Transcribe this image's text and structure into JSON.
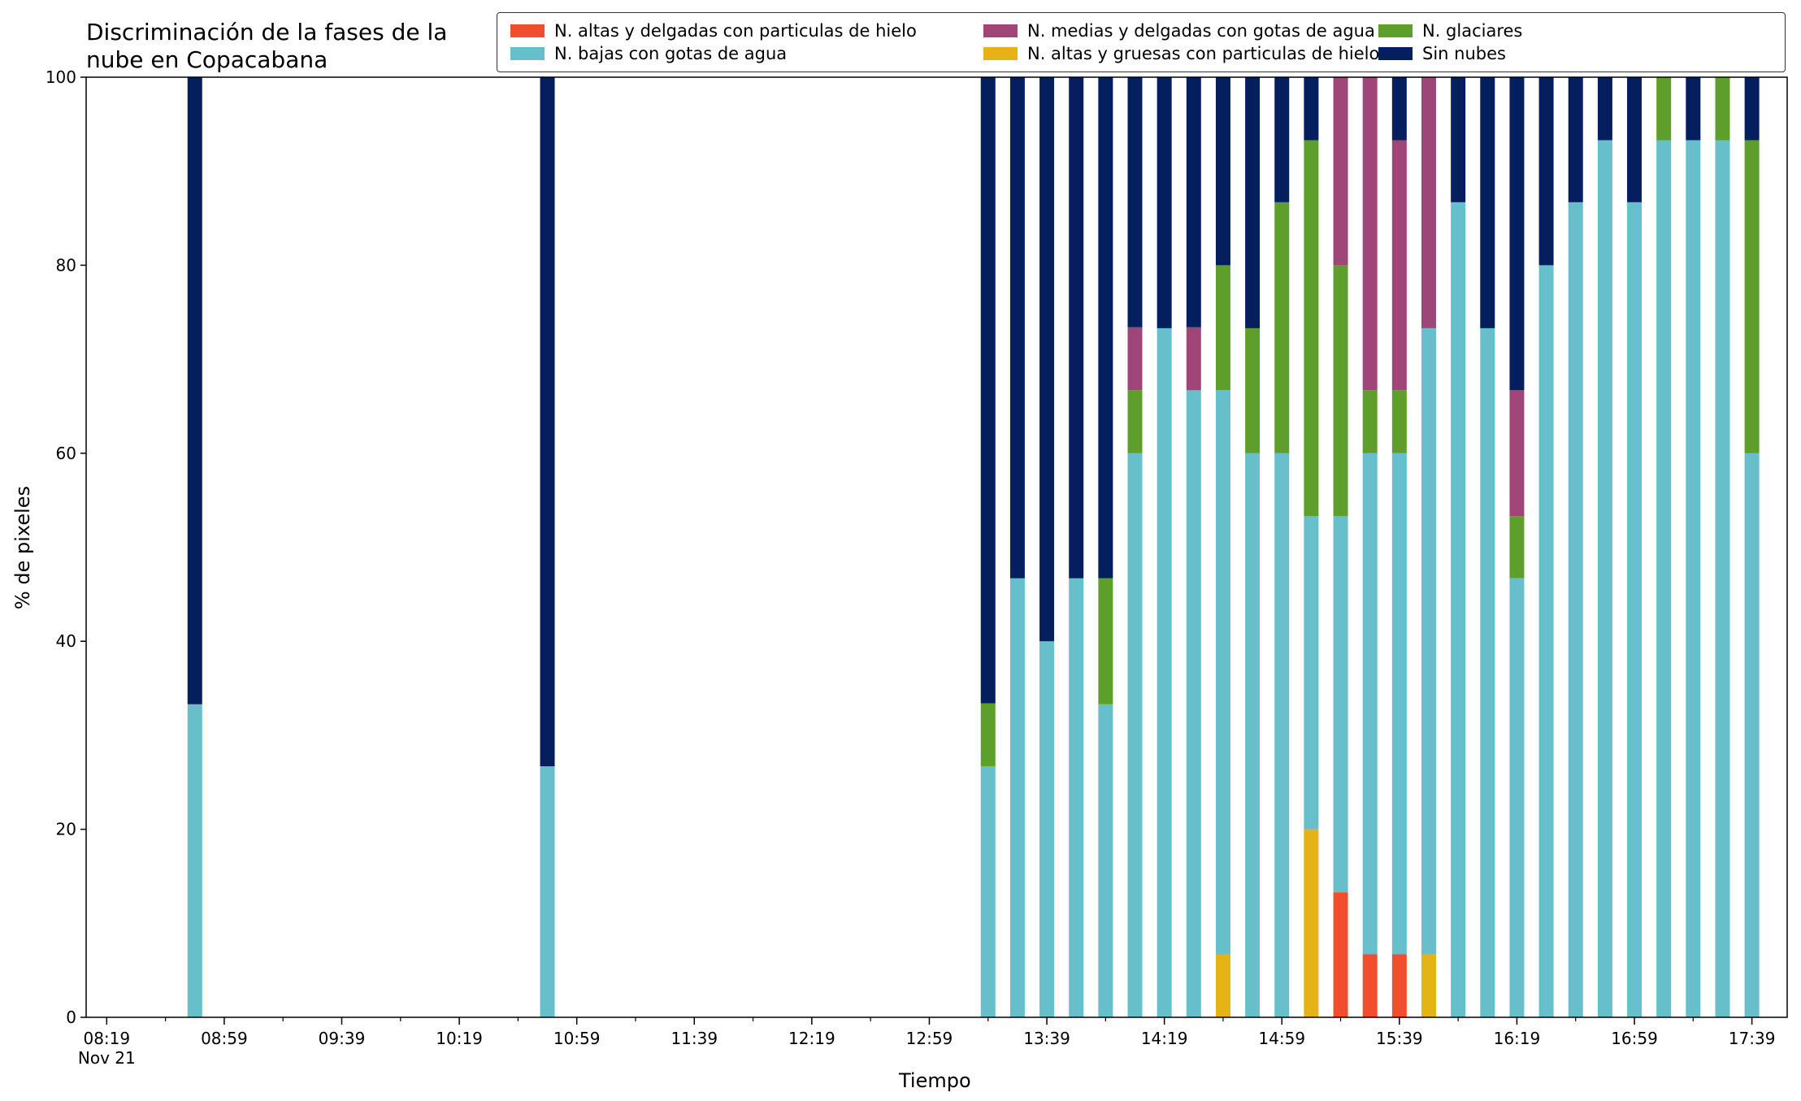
{
  "chart_data": {
    "type": "bar",
    "stacked": true,
    "title_lines": [
      "Discriminación de la fases de la",
      "nube en Copacabana"
    ],
    "xlabel": "Tiempo",
    "ylabel": "% de pixeles",
    "ylim": [
      0,
      100
    ],
    "yticks": [
      0,
      20,
      40,
      60,
      80,
      100
    ],
    "x_range_minutes": [
      "08:12",
      "17:51"
    ],
    "xtick_labels": [
      "08:19",
      "08:59",
      "09:39",
      "10:19",
      "10:59",
      "11:39",
      "12:19",
      "12:59",
      "13:39",
      "14:19",
      "14:59",
      "15:39",
      "16:19",
      "16:59",
      "17:39"
    ],
    "xtick_sublabel": "Nov 21",
    "legend_placement": "top-right, outside above axes",
    "series": [
      {
        "key": "altas_delgadas",
        "name": "N. altas y delgadas con particulas de hielo",
        "color": "#f04e2c"
      },
      {
        "key": "altas_gruesas",
        "name": "N. altas y gruesas con particulas de hielo",
        "color": "#e5b315"
      },
      {
        "key": "bajas",
        "name": "N. bajas con gotas de agua",
        "color": "#66bfca"
      },
      {
        "key": "glaciares",
        "name": "N. glaciares",
        "color": "#5e9f2b"
      },
      {
        "key": "medias",
        "name": "N. medias y delgadas con gotas de agua",
        "color": "#a04577"
      },
      {
        "key": "sin_nubes",
        "name": "Sin nubes",
        "color": "#041e5e"
      }
    ],
    "legend_order": [
      "altas_delgadas",
      "bajas",
      "medias",
      "altas_gruesas",
      "glaciares",
      "sin_nubes"
    ],
    "bars": [
      {
        "time": "08:49",
        "altas_delgadas": 0,
        "altas_gruesas": 0,
        "bajas": 33.3,
        "glaciares": 0,
        "medias": 0,
        "sin_nubes": 66.7
      },
      {
        "time": "10:49",
        "altas_delgadas": 0,
        "altas_gruesas": 0,
        "bajas": 26.7,
        "glaciares": 0,
        "medias": 0,
        "sin_nubes": 73.3
      },
      {
        "time": "13:19",
        "altas_delgadas": 0,
        "altas_gruesas": 0,
        "bajas": 26.7,
        "glaciares": 6.7,
        "medias": 0,
        "sin_nubes": 66.6
      },
      {
        "time": "13:29",
        "altas_delgadas": 0,
        "altas_gruesas": 0,
        "bajas": 46.7,
        "glaciares": 0,
        "medias": 0,
        "sin_nubes": 53.3
      },
      {
        "time": "13:39",
        "altas_delgadas": 0,
        "altas_gruesas": 0,
        "bajas": 40.0,
        "glaciares": 0,
        "medias": 0,
        "sin_nubes": 60.0
      },
      {
        "time": "13:49",
        "altas_delgadas": 0,
        "altas_gruesas": 0,
        "bajas": 46.7,
        "glaciares": 0,
        "medias": 0,
        "sin_nubes": 53.3
      },
      {
        "time": "13:59",
        "altas_delgadas": 0,
        "altas_gruesas": 0,
        "bajas": 33.3,
        "glaciares": 13.4,
        "medias": 0,
        "sin_nubes": 53.3
      },
      {
        "time": "14:09",
        "altas_delgadas": 0,
        "altas_gruesas": 0,
        "bajas": 60.0,
        "glaciares": 6.7,
        "medias": 6.7,
        "sin_nubes": 26.6
      },
      {
        "time": "14:19",
        "altas_delgadas": 0,
        "altas_gruesas": 0,
        "bajas": 73.3,
        "glaciares": 0,
        "medias": 0,
        "sin_nubes": 26.7
      },
      {
        "time": "14:29",
        "altas_delgadas": 0,
        "altas_gruesas": 0,
        "bajas": 66.7,
        "glaciares": 0,
        "medias": 6.7,
        "sin_nubes": 26.6
      },
      {
        "time": "14:39",
        "altas_delgadas": 0,
        "altas_gruesas": 6.7,
        "bajas": 60.0,
        "glaciares": 13.3,
        "medias": 0,
        "sin_nubes": 20.0
      },
      {
        "time": "14:49",
        "altas_delgadas": 0,
        "altas_gruesas": 0,
        "bajas": 60.0,
        "glaciares": 13.3,
        "medias": 0,
        "sin_nubes": 26.7
      },
      {
        "time": "14:59",
        "altas_delgadas": 0,
        "altas_gruesas": 0,
        "bajas": 60.0,
        "glaciares": 26.7,
        "medias": 0,
        "sin_nubes": 13.3
      },
      {
        "time": "15:09",
        "altas_delgadas": 0,
        "altas_gruesas": 20.0,
        "bajas": 33.3,
        "glaciares": 40.0,
        "medias": 0,
        "sin_nubes": 6.7
      },
      {
        "time": "15:19",
        "altas_delgadas": 13.3,
        "altas_gruesas": 0,
        "bajas": 40.0,
        "glaciares": 26.7,
        "medias": 20.0,
        "sin_nubes": 0
      },
      {
        "time": "15:29",
        "altas_delgadas": 6.7,
        "altas_gruesas": 0,
        "bajas": 53.3,
        "glaciares": 6.7,
        "medias": 33.3,
        "sin_nubes": 0
      },
      {
        "time": "15:39",
        "altas_delgadas": 6.7,
        "altas_gruesas": 0,
        "bajas": 53.3,
        "glaciares": 6.7,
        "medias": 26.6,
        "sin_nubes": 6.7
      },
      {
        "time": "15:49",
        "altas_delgadas": 0,
        "altas_gruesas": 6.7,
        "bajas": 66.6,
        "glaciares": 0,
        "medias": 26.7,
        "sin_nubes": 0
      },
      {
        "time": "15:59",
        "altas_delgadas": 0,
        "altas_gruesas": 0,
        "bajas": 86.7,
        "glaciares": 0,
        "medias": 0,
        "sin_nubes": 13.3
      },
      {
        "time": "16:09",
        "altas_delgadas": 0,
        "altas_gruesas": 0,
        "bajas": 73.3,
        "glaciares": 0,
        "medias": 0,
        "sin_nubes": 26.7
      },
      {
        "time": "16:19",
        "altas_delgadas": 0,
        "altas_gruesas": 0,
        "bajas": 46.7,
        "glaciares": 6.6,
        "medias": 13.4,
        "sin_nubes": 33.3
      },
      {
        "time": "16:29",
        "altas_delgadas": 0,
        "altas_gruesas": 0,
        "bajas": 80.0,
        "glaciares": 0,
        "medias": 0,
        "sin_nubes": 20.0
      },
      {
        "time": "16:39",
        "altas_delgadas": 0,
        "altas_gruesas": 0,
        "bajas": 86.7,
        "glaciares": 0,
        "medias": 0,
        "sin_nubes": 13.3
      },
      {
        "time": "16:49",
        "altas_delgadas": 0,
        "altas_gruesas": 0,
        "bajas": 93.3,
        "glaciares": 0,
        "medias": 0,
        "sin_nubes": 6.7
      },
      {
        "time": "16:59",
        "altas_delgadas": 0,
        "altas_gruesas": 0,
        "bajas": 86.7,
        "glaciares": 0,
        "medias": 0,
        "sin_nubes": 13.3
      },
      {
        "time": "17:09",
        "altas_delgadas": 0,
        "altas_gruesas": 0,
        "bajas": 93.3,
        "glaciares": 6.7,
        "medias": 0,
        "sin_nubes": 0
      },
      {
        "time": "17:19",
        "altas_delgadas": 0,
        "altas_gruesas": 0,
        "bajas": 93.3,
        "glaciares": 0,
        "medias": 0,
        "sin_nubes": 6.7
      },
      {
        "time": "17:29",
        "altas_delgadas": 0,
        "altas_gruesas": 0,
        "bajas": 93.3,
        "glaciares": 6.7,
        "medias": 0,
        "sin_nubes": 0
      },
      {
        "time": "17:39",
        "altas_delgadas": 0,
        "altas_gruesas": 0,
        "bajas": 60.0,
        "glaciares": 33.3,
        "medias": 0,
        "sin_nubes": 6.7
      }
    ]
  }
}
